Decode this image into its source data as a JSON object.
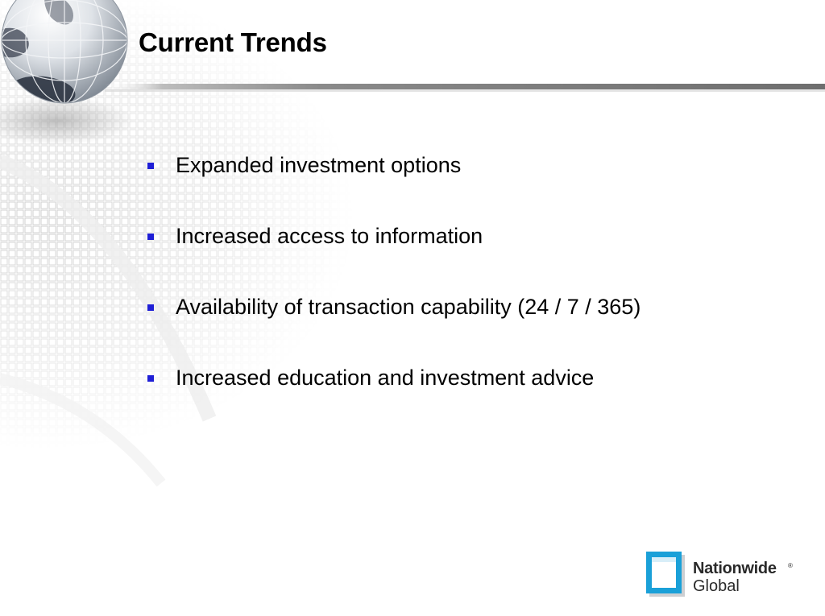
{
  "slide": {
    "title": "Current Trends",
    "bullets": [
      "Expanded investment options",
      "Increased access to information",
      "Availability of transaction capability (24 / 7 / 365)",
      "Increased education and investment advice"
    ],
    "logo": {
      "name": "Nationwide",
      "registered": "®",
      "sub": "Global"
    }
  },
  "colors": {
    "bullet": "#1f1fd6",
    "logo_blue": "#1aa0d8",
    "divider": "#6e6e6e"
  }
}
